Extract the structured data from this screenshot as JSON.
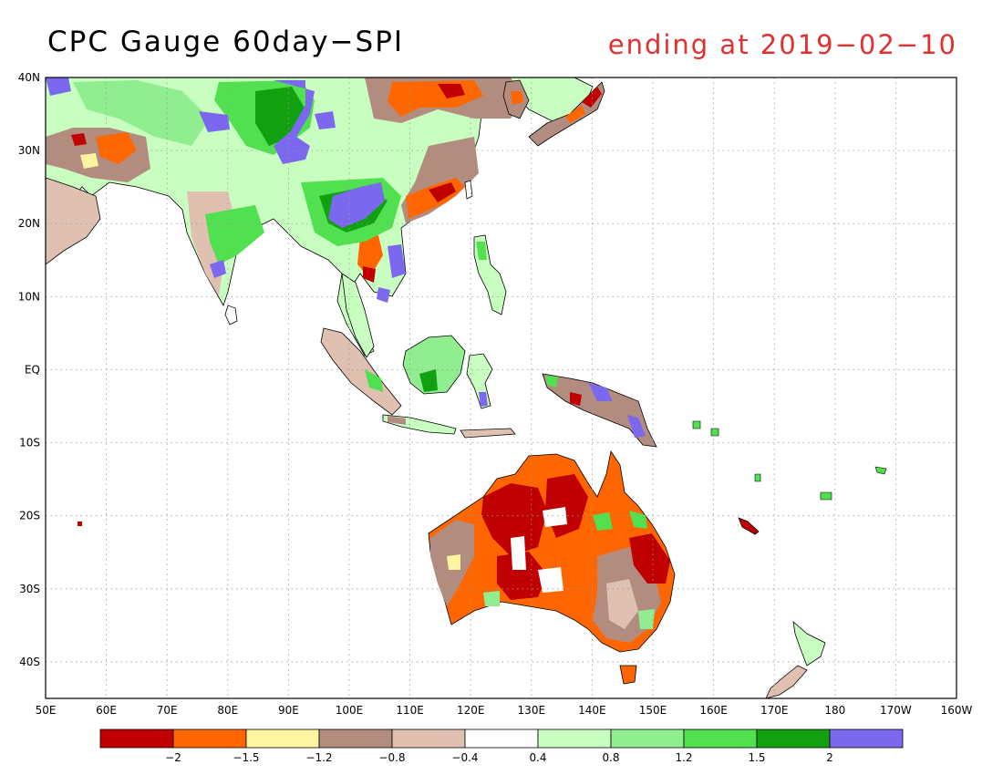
{
  "title": "CPC Gauge 60day−SPI",
  "subtitle": "ending at 2019−02−10",
  "subtitle_color": "#e03030",
  "map": {
    "lon_range": [
      50,
      200
    ],
    "lat_range": [
      -45,
      40
    ],
    "lon_ticks": [
      "50E",
      "60E",
      "70E",
      "80E",
      "90E",
      "100E",
      "110E",
      "120E",
      "130E",
      "140E",
      "150E",
      "160E",
      "170E",
      "180",
      "170W",
      "160W"
    ],
    "lat_ticks": [
      "40N",
      "30N",
      "20N",
      "10N",
      "EQ",
      "10S",
      "20S",
      "30S",
      "40S"
    ],
    "grid": "dotted"
  },
  "colorbar": {
    "colors": [
      "#c00000",
      "#ff6600",
      "#fff5a0",
      "#b38c80",
      "#e0c0b0",
      "#ffffff",
      "#c8ffc0",
      "#90ee90",
      "#50e050",
      "#10a010",
      "#7b68ee"
    ],
    "labels": [
      "−2",
      "−1.5",
      "−1.2",
      "−0.8",
      "−0.4",
      "0.4",
      "0.8",
      "1.2",
      "1.5",
      "2"
    ]
  }
}
